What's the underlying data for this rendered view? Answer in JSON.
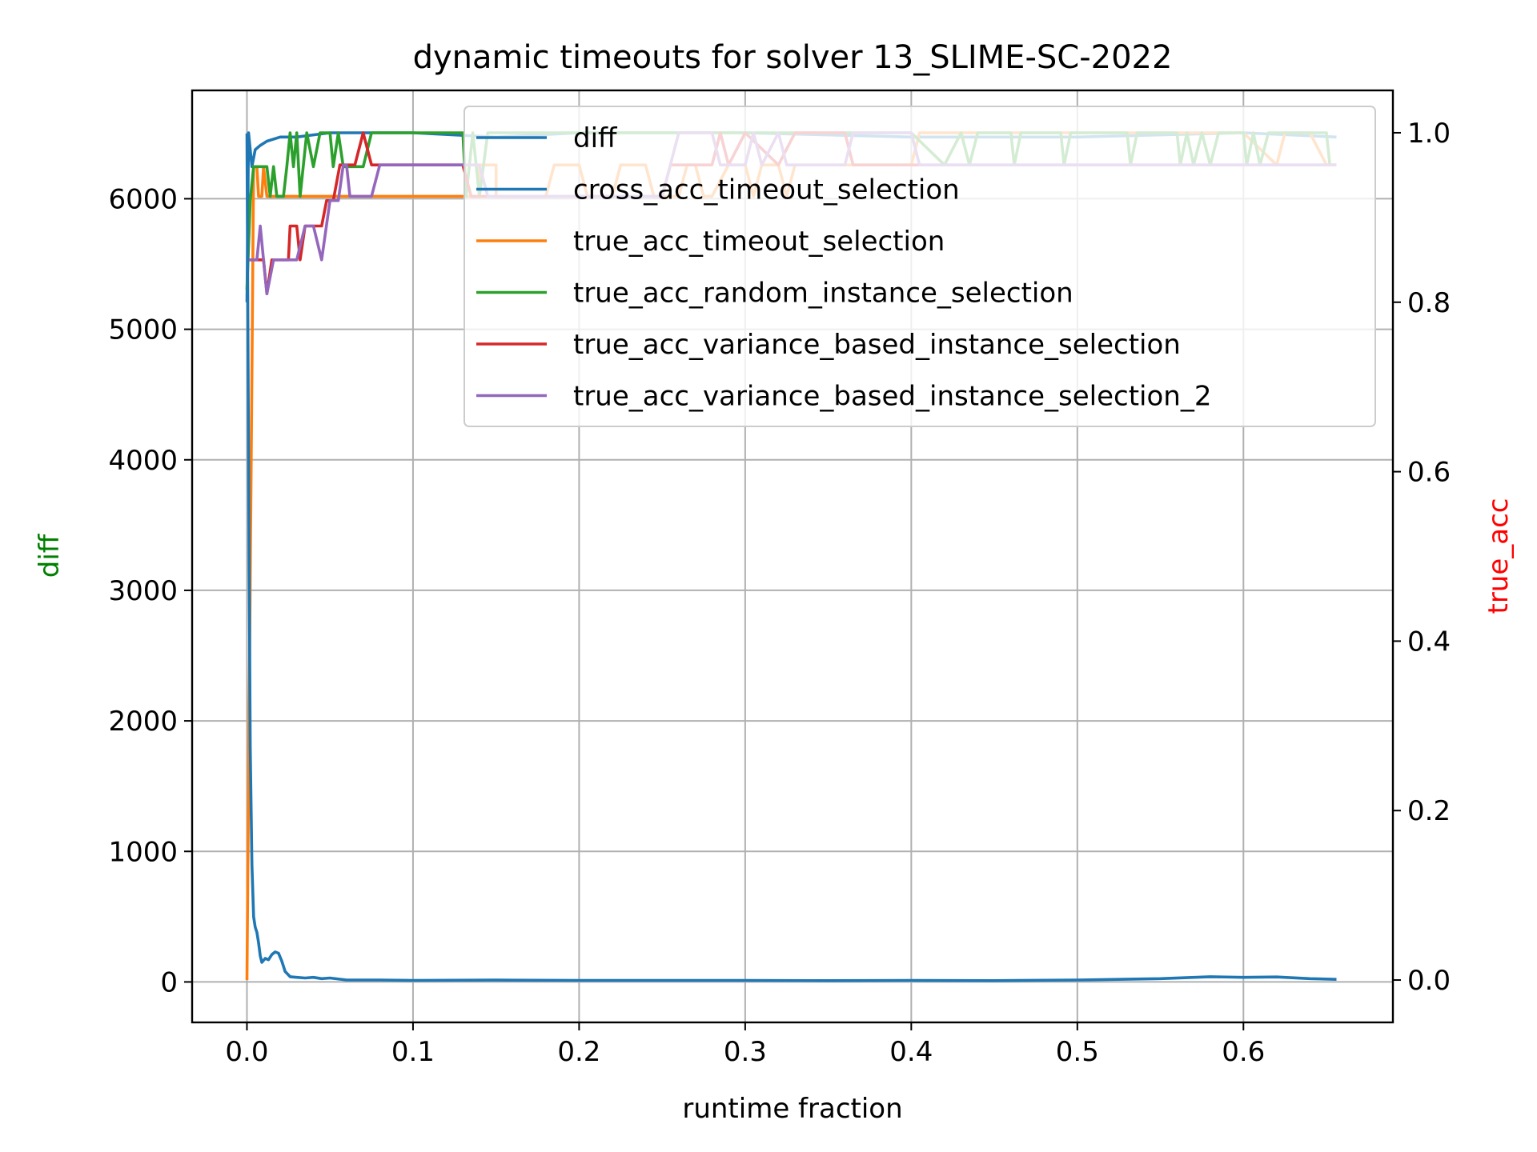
{
  "chart_data": {
    "type": "line",
    "title": "dynamic timeouts for solver 13_SLIME-SC-2022",
    "xlabel": "runtime fraction",
    "ylabel_left": "diff",
    "ylabel_right": "true_acc",
    "ylabel_left_color": "#008000",
    "ylabel_right_color": "#ff0000",
    "xlim": [
      -0.033,
      0.69
    ],
    "ylim_left": [
      -310,
      6830
    ],
    "ylim_right": [
      -0.05,
      1.05
    ],
    "xticks": [
      "0.0",
      "0.1",
      "0.2",
      "0.3",
      "0.4",
      "0.5",
      "0.6"
    ],
    "yticks_left": [
      "0",
      "1000",
      "2000",
      "3000",
      "4000",
      "5000",
      "6000"
    ],
    "yticks_right": [
      "0.0",
      "0.2",
      "0.4",
      "0.6",
      "0.8",
      "1.0"
    ],
    "grid": true,
    "legend_placement": "top-right",
    "legend": [
      "diff",
      "cross_acc_timeout_selection",
      "true_acc_timeout_selection",
      "true_acc_random_instance_selection",
      "true_acc_variance_based_instance_selection",
      "true_acc_variance_based_instance_selection_2"
    ],
    "series": [
      {
        "name": "diff",
        "axis": "left",
        "color": "#1f77b4",
        "points": [
          [
            0,
            6500
          ],
          [
            0.001,
            4000
          ],
          [
            0.002,
            1800
          ],
          [
            0.003,
            900
          ],
          [
            0.004,
            500
          ],
          [
            0.005,
            420
          ],
          [
            0.006,
            380
          ],
          [
            0.007,
            300
          ],
          [
            0.008,
            200
          ],
          [
            0.009,
            150
          ],
          [
            0.011,
            180
          ],
          [
            0.013,
            170
          ],
          [
            0.015,
            210
          ],
          [
            0.017,
            230
          ],
          [
            0.019,
            220
          ],
          [
            0.021,
            160
          ],
          [
            0.023,
            80
          ],
          [
            0.026,
            40
          ],
          [
            0.03,
            35
          ],
          [
            0.035,
            30
          ],
          [
            0.04,
            35
          ],
          [
            0.045,
            25
          ],
          [
            0.05,
            30
          ],
          [
            0.06,
            15
          ],
          [
            0.08,
            15
          ],
          [
            0.1,
            12
          ],
          [
            0.15,
            14
          ],
          [
            0.2,
            12
          ],
          [
            0.25,
            12
          ],
          [
            0.3,
            12
          ],
          [
            0.35,
            10
          ],
          [
            0.4,
            12
          ],
          [
            0.45,
            10
          ],
          [
            0.5,
            15
          ],
          [
            0.55,
            25
          ],
          [
            0.58,
            40
          ],
          [
            0.6,
            35
          ],
          [
            0.62,
            38
          ],
          [
            0.64,
            25
          ],
          [
            0.656,
            20
          ]
        ]
      },
      {
        "name": "cross_acc_timeout_selection",
        "axis": "right",
        "color": "#1f77b4",
        "points": [
          [
            0,
            0.8
          ],
          [
            0.001,
            1.0
          ],
          [
            0.003,
            0.96
          ],
          [
            0.005,
            0.98
          ],
          [
            0.008,
            0.985
          ],
          [
            0.012,
            0.99
          ],
          [
            0.02,
            0.995
          ],
          [
            0.03,
            0.995
          ],
          [
            0.05,
            1.0
          ],
          [
            0.1,
            1.0
          ],
          [
            0.15,
            0.995
          ],
          [
            0.2,
            1.0
          ],
          [
            0.3,
            1.0
          ],
          [
            0.4,
            0.995
          ],
          [
            0.5,
            0.995
          ],
          [
            0.6,
            1.0
          ],
          [
            0.656,
            0.995
          ]
        ]
      },
      {
        "name": "true_acc_timeout_selection",
        "axis": "right",
        "color": "#ff7f0e",
        "points": [
          [
            0,
            0
          ],
          [
            0.004,
            0.96
          ],
          [
            0.006,
            0.96
          ],
          [
            0.007,
            0.925
          ],
          [
            0.009,
            0.925
          ],
          [
            0.01,
            0.96
          ],
          [
            0.012,
            0.925
          ],
          [
            0.14,
            0.925
          ],
          [
            0.14,
            0.962
          ],
          [
            0.15,
            0.962
          ],
          [
            0.15,
            0.925
          ],
          [
            0.18,
            0.925
          ],
          [
            0.185,
            0.962
          ],
          [
            0.2,
            0.962
          ],
          [
            0.205,
            0.925
          ],
          [
            0.22,
            0.925
          ],
          [
            0.225,
            0.962
          ],
          [
            0.24,
            0.962
          ],
          [
            0.245,
            0.925
          ],
          [
            0.26,
            0.925
          ],
          [
            0.265,
            0.962
          ],
          [
            0.27,
            0.962
          ],
          [
            0.275,
            0.925
          ],
          [
            0.28,
            0.925
          ],
          [
            0.29,
            0.962
          ],
          [
            0.3,
            0.962
          ],
          [
            0.305,
            0.925
          ],
          [
            0.31,
            0.962
          ],
          [
            0.32,
            0.962
          ],
          [
            0.325,
            0.925
          ],
          [
            0.33,
            0.962
          ],
          [
            0.4,
            0.962
          ],
          [
            0.405,
            1.0
          ],
          [
            0.5,
            1.0
          ],
          [
            0.55,
            1.0
          ],
          [
            0.6,
            1.0
          ],
          [
            0.62,
            0.962
          ],
          [
            0.625,
            1.0
          ],
          [
            0.64,
            1.0
          ],
          [
            0.65,
            0.962
          ],
          [
            0.656,
            0.962
          ]
        ]
      },
      {
        "name": "true_acc_random_instance_selection",
        "axis": "right",
        "color": "#2ca02c",
        "points": [
          [
            0,
            0.815
          ],
          [
            0.002,
            0.92
          ],
          [
            0.004,
            0.96
          ],
          [
            0.012,
            0.96
          ],
          [
            0.014,
            0.925
          ],
          [
            0.016,
            0.96
          ],
          [
            0.018,
            0.925
          ],
          [
            0.022,
            0.925
          ],
          [
            0.024,
            0.96
          ],
          [
            0.026,
            1.0
          ],
          [
            0.028,
            0.96
          ],
          [
            0.03,
            1.0
          ],
          [
            0.032,
            0.925
          ],
          [
            0.036,
            1.0
          ],
          [
            0.04,
            0.96
          ],
          [
            0.044,
            1.0
          ],
          [
            0.05,
            1.0
          ],
          [
            0.052,
            0.96
          ],
          [
            0.055,
            1.0
          ],
          [
            0.058,
            0.96
          ],
          [
            0.07,
            0.96
          ],
          [
            0.075,
            1.0
          ],
          [
            0.13,
            1.0
          ],
          [
            0.132,
            0.925
          ],
          [
            0.136,
            1.0
          ],
          [
            0.14,
            0.925
          ],
          [
            0.145,
            1.0
          ],
          [
            0.4,
            1.0
          ],
          [
            0.42,
            0.962
          ],
          [
            0.43,
            1.0
          ],
          [
            0.435,
            0.962
          ],
          [
            0.44,
            1.0
          ],
          [
            0.46,
            1.0
          ],
          [
            0.462,
            0.962
          ],
          [
            0.466,
            1.0
          ],
          [
            0.49,
            1.0
          ],
          [
            0.492,
            0.962
          ],
          [
            0.496,
            1.0
          ],
          [
            0.53,
            1.0
          ],
          [
            0.532,
            0.962
          ],
          [
            0.536,
            1.0
          ],
          [
            0.56,
            1.0
          ],
          [
            0.562,
            0.962
          ],
          [
            0.566,
            1.0
          ],
          [
            0.57,
            0.962
          ],
          [
            0.575,
            1.0
          ],
          [
            0.58,
            0.962
          ],
          [
            0.585,
            1.0
          ],
          [
            0.6,
            1.0
          ],
          [
            0.602,
            0.962
          ],
          [
            0.606,
            1.0
          ],
          [
            0.61,
            0.962
          ],
          [
            0.615,
            1.0
          ],
          [
            0.65,
            1.0
          ],
          [
            0.652,
            0.962
          ],
          [
            0.656,
            0.962
          ]
        ]
      },
      {
        "name": "true_acc_variance_based_instance_selection",
        "axis": "right",
        "color": "#d62728",
        "points": [
          [
            0,
            0.85
          ],
          [
            0.005,
            0.85
          ],
          [
            0.01,
            0.85
          ],
          [
            0.012,
            0.81
          ],
          [
            0.015,
            0.85
          ],
          [
            0.025,
            0.85
          ],
          [
            0.026,
            0.89
          ],
          [
            0.03,
            0.89
          ],
          [
            0.032,
            0.85
          ],
          [
            0.035,
            0.89
          ],
          [
            0.045,
            0.89
          ],
          [
            0.048,
            0.92
          ],
          [
            0.052,
            0.92
          ],
          [
            0.056,
            0.962
          ],
          [
            0.065,
            0.962
          ],
          [
            0.07,
            1.0
          ],
          [
            0.075,
            0.962
          ],
          [
            0.13,
            0.962
          ],
          [
            0.135,
            0.925
          ],
          [
            0.25,
            0.925
          ],
          [
            0.255,
            0.962
          ],
          [
            0.28,
            0.962
          ],
          [
            0.285,
            1.0
          ],
          [
            0.29,
            0.962
          ],
          [
            0.3,
            1.0
          ],
          [
            0.32,
            0.962
          ],
          [
            0.33,
            1.0
          ],
          [
            0.36,
            1.0
          ],
          [
            0.365,
            0.962
          ],
          [
            0.656,
            0.962
          ]
        ]
      },
      {
        "name": "true_acc_variance_based_instance_selection_2",
        "axis": "right",
        "color": "#9467bd",
        "points": [
          [
            0,
            0.85
          ],
          [
            0.006,
            0.85
          ],
          [
            0.008,
            0.89
          ],
          [
            0.01,
            0.85
          ],
          [
            0.012,
            0.81
          ],
          [
            0.016,
            0.85
          ],
          [
            0.03,
            0.85
          ],
          [
            0.035,
            0.89
          ],
          [
            0.04,
            0.89
          ],
          [
            0.045,
            0.85
          ],
          [
            0.05,
            0.92
          ],
          [
            0.055,
            0.92
          ],
          [
            0.058,
            0.962
          ],
          [
            0.06,
            0.962
          ],
          [
            0.062,
            0.925
          ],
          [
            0.075,
            0.925
          ],
          [
            0.08,
            0.962
          ],
          [
            0.14,
            0.962
          ],
          [
            0.145,
            0.925
          ],
          [
            0.25,
            0.925
          ],
          [
            0.26,
            1.0
          ],
          [
            0.28,
            1.0
          ],
          [
            0.285,
            0.962
          ],
          [
            0.3,
            0.962
          ],
          [
            0.305,
            1.0
          ],
          [
            0.31,
            0.962
          ],
          [
            0.32,
            1.0
          ],
          [
            0.325,
            0.962
          ],
          [
            0.36,
            0.962
          ],
          [
            0.365,
            1.0
          ],
          [
            0.4,
            1.0
          ],
          [
            0.405,
            0.962
          ],
          [
            0.656,
            0.962
          ]
        ]
      }
    ]
  }
}
